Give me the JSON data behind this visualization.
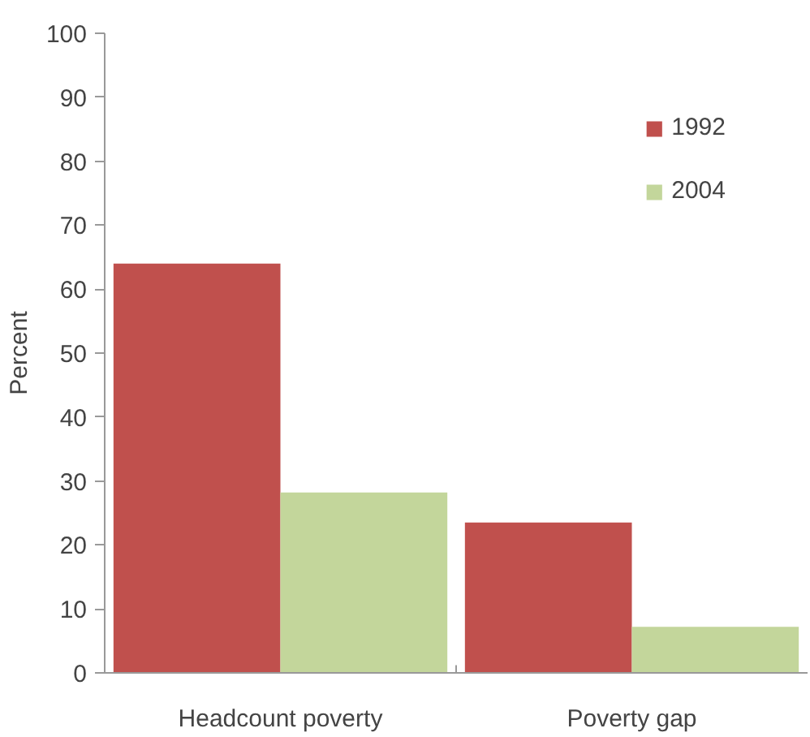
{
  "chart_data": {
    "type": "bar",
    "ylabel": "Percent",
    "categories": [
      "Headcount poverty",
      "Poverty gap"
    ],
    "series": [
      {
        "name": "1992",
        "color": "#c0504d",
        "values": [
          64.0,
          23.5
        ]
      },
      {
        "name": "2004",
        "color": "#c3d69b",
        "values": [
          28.2,
          7.2
        ]
      }
    ],
    "ylim": [
      0,
      100
    ],
    "yticks": [
      0,
      10,
      20,
      30,
      40,
      50,
      60,
      70,
      80,
      90,
      100
    ],
    "grid": false,
    "legend": "top right"
  }
}
